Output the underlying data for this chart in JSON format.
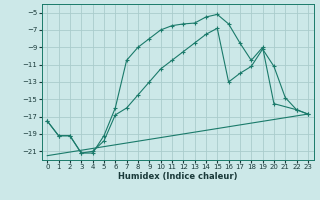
{
  "xlabel": "Humidex (Indice chaleur)",
  "bg_color": "#cce8e8",
  "grid_color": "#aacccc",
  "line_color": "#1a7a6a",
  "xlim": [
    -0.5,
    23.5
  ],
  "ylim": [
    -22,
    -4
  ],
  "xticks": [
    0,
    1,
    2,
    3,
    4,
    5,
    6,
    7,
    8,
    9,
    10,
    11,
    12,
    13,
    14,
    15,
    16,
    17,
    18,
    19,
    20,
    21,
    22,
    23
  ],
  "yticks": [
    -21,
    -19,
    -17,
    -15,
    -13,
    -11,
    -9,
    -7,
    -5
  ],
  "curve1_x": [
    0,
    1,
    2,
    3,
    4,
    5,
    6,
    7,
    8,
    9,
    10,
    11,
    12,
    13,
    14,
    15,
    16,
    17,
    18,
    19,
    20,
    22,
    23
  ],
  "curve1_y": [
    -17.5,
    -19.2,
    -19.2,
    -21.2,
    -21.2,
    -19.2,
    -16.0,
    -10.5,
    -9.0,
    -8.0,
    -7.0,
    -6.5,
    -6.3,
    -6.2,
    -5.5,
    -5.2,
    -6.3,
    -8.5,
    -10.5,
    -9.0,
    -15.5,
    -16.2,
    -16.7
  ],
  "curve2_x": [
    0,
    1,
    2,
    3,
    4,
    5,
    6,
    7,
    8,
    9,
    10,
    11,
    12,
    13,
    14,
    15,
    16,
    17,
    18,
    19,
    20,
    21,
    22,
    23
  ],
  "curve2_y": [
    -17.5,
    -19.2,
    -19.2,
    -21.2,
    -21.0,
    -19.8,
    -16.8,
    -16.0,
    -14.5,
    -13.0,
    -11.5,
    -10.5,
    -9.5,
    -8.5,
    -7.5,
    -6.8,
    -13.0,
    -12.0,
    -11.2,
    -9.2,
    -11.2,
    -14.8,
    -16.2,
    -16.7
  ],
  "curve3_x": [
    0,
    23
  ],
  "curve3_y": [
    -21.5,
    -16.7
  ]
}
